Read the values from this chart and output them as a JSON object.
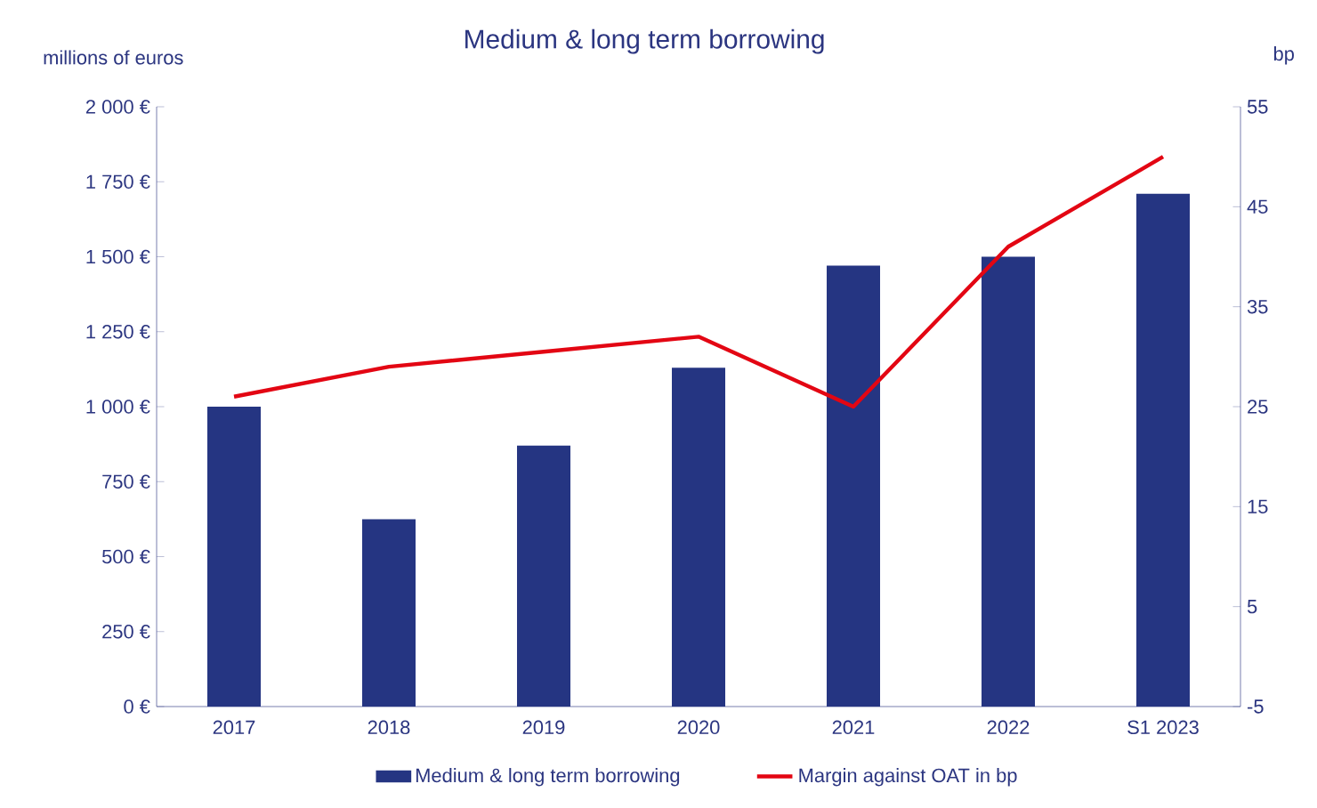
{
  "chart_data": {
    "type": "bar",
    "title": "Medium & long term borrowing",
    "ylabel": "millions of euros",
    "y2label": "bp",
    "categories": [
      "2017",
      "2018",
      "2019",
      "2020",
      "2021",
      "2022",
      "S1 2023"
    ],
    "series": [
      {
        "name": "Medium & long term borrowing",
        "color": "#253582",
        "values": [
          1000,
          625,
          870,
          1130,
          1470,
          1500,
          1710
        ]
      },
      {
        "name": "Margin against OAT in bp",
        "type": "line",
        "axis": "y2",
        "color": "#e30613",
        "values": [
          26,
          29,
          30.5,
          32,
          25,
          41,
          50
        ]
      }
    ],
    "ylim": [
      0,
      2000
    ],
    "yticks": [
      {
        "value": 0,
        "label": "0 €"
      },
      {
        "value": 250,
        "label": "250 €"
      },
      {
        "value": 500,
        "label": "500 €"
      },
      {
        "value": 750,
        "label": "750 €"
      },
      {
        "value": 1000,
        "label": "1 000 €"
      },
      {
        "value": 1250,
        "label": "1 250 €"
      },
      {
        "value": 1500,
        "label": "1 500 €"
      },
      {
        "value": 1750,
        "label": "1 750 €"
      },
      {
        "value": 2000,
        "label": "2 000 €"
      }
    ],
    "y2lim": [
      -5,
      55
    ],
    "y2ticks": [
      -5,
      5,
      15,
      25,
      35,
      45,
      55
    ],
    "legend": "bottom"
  }
}
